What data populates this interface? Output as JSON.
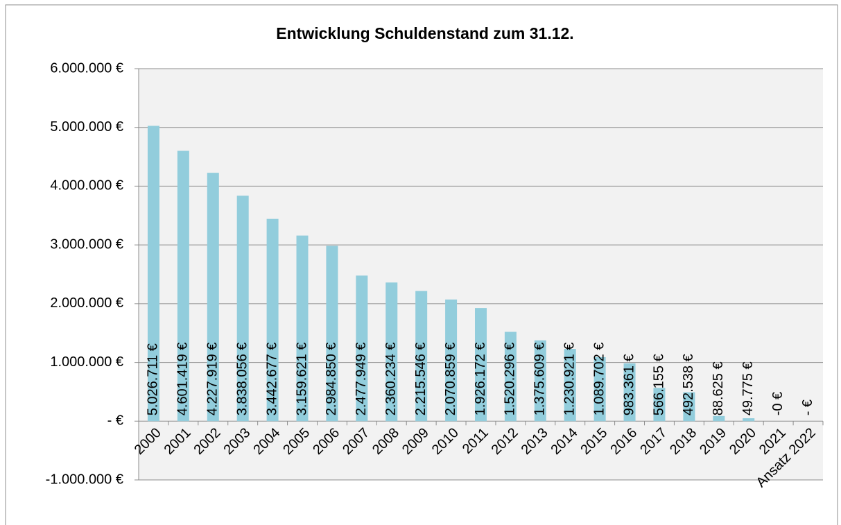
{
  "chart_data": {
    "type": "bar",
    "title": "Entwicklung Schuldenstand zum 31.12.",
    "categories": [
      "2000",
      "2001",
      "2002",
      "2003",
      "2004",
      "2005",
      "2006",
      "2007",
      "2008",
      "2009",
      "2010",
      "2011",
      "2012",
      "2013",
      "2014",
      "2015",
      "2016",
      "2017",
      "2018",
      "2019",
      "2020",
      "2021",
      "Ansatz 2022"
    ],
    "values": [
      5026711,
      4601419,
      4227919,
      3838056,
      3442677,
      3159621,
      2984850,
      2477949,
      2360234,
      2215546,
      2070859,
      1926172,
      1520296,
      1375609,
      1230921,
      1089702,
      983361,
      566155,
      492538,
      88625,
      49775,
      -0.3,
      0
    ],
    "value_labels": [
      "5.026.711 €",
      "4.601.419 €",
      "4.227.919 €",
      "3.838.056 €",
      "3.442.677 €",
      "3.159.621 €",
      "2.984.850 €",
      "2.477.949 €",
      "2.360.234 €",
      "2.215.546 €",
      "2.070.859 €",
      "1.926.172 €",
      "1.520.296 €",
      "1.375.609 €",
      "1.230.921 €",
      "1.089.702 €",
      "983.361 €",
      "566.155 €",
      "492.538 €",
      "88.625 €",
      "49.775 €",
      "-0 €",
      "- €"
    ],
    "color": "#92cddc",
    "ylim": [
      -1000000,
      6000000
    ],
    "yticks": [
      {
        "value": -1000000,
        "label": "-1.000.000 €"
      },
      {
        "value": 0,
        "label": "-   €"
      },
      {
        "value": 1000000,
        "label": "1.000.000 €"
      },
      {
        "value": 2000000,
        "label": "2.000.000 €"
      },
      {
        "value": 3000000,
        "label": "3.000.000 €"
      },
      {
        "value": 4000000,
        "label": "4.000.000 €"
      },
      {
        "value": 5000000,
        "label": "5.000.000 €"
      },
      {
        "value": 6000000,
        "label": "6.000.000 €"
      }
    ],
    "grid": true
  }
}
